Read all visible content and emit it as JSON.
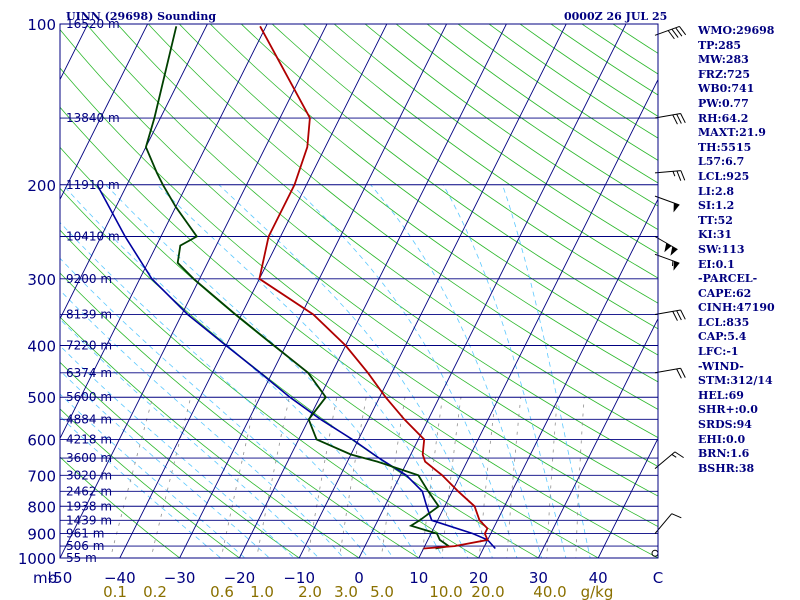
{
  "header": {
    "station": "UINN (29698) Sounding",
    "time": "0000Z 26 JUL 25"
  },
  "indices": [
    "WMO:29698",
    "TP:285",
    "MW:283",
    "FRZ:725",
    "WB0:741",
    "PW:0.77",
    "RH:64.2",
    "MAXT:21.9",
    "TH:5515",
    "L57:6.7",
    "LCL:925",
    "LI:2.8",
    "SI:1.2",
    "TT:52",
    "KI:31",
    "SW:113",
    "EI:0.1",
    "-PARCEL-",
    "CAPE:62",
    "CINH:47190",
    "LCL:835",
    "CAP:5.4",
    "LFC:-1",
    "-WIND-",
    "STM:312/14",
    "HEL:69",
    "SHR+:0.0",
    "SRDS:94",
    "EHI:0.0",
    "BRN:1.6",
    "BSHR:38"
  ],
  "colors": {
    "isobar": "#000080",
    "isotherm": "#000080",
    "dry_adiabat": "#2db82d",
    "moist_adiabat": "#5bc8ff",
    "mixing_ratio": "#909090",
    "temperature": "#b00000",
    "dewpoint": "#004000",
    "parcel": "#0000a0",
    "axis_text": "#000080",
    "mixing_text": "#8a7000"
  },
  "chart_data": {
    "type": "line",
    "title": "UINN (29698) Sounding",
    "xlabel": "",
    "ylabel": "mb",
    "xlim": [
      -50,
      50
    ],
    "ylim": [
      1000,
      100
    ],
    "log_y": true,
    "grid": true,
    "pressure_ticks": [
      100,
      200,
      300,
      400,
      500,
      600,
      700,
      800,
      900,
      1000
    ],
    "temperature_ticks": [
      -50,
      -40,
      -30,
      -20,
      -10,
      0,
      10,
      20,
      30,
      40,
      50
    ],
    "temperature_tick_labels": [
      "-50",
      "−40",
      "−30",
      "−20",
      "−10",
      "0",
      "10",
      "20",
      "30",
      "40",
      "C"
    ],
    "axis_unit_left": "mb",
    "mixing_ratio_labels": [
      "0.1",
      "0.2",
      "0.6",
      "1.0",
      "2.0",
      "3.0",
      "5.0",
      "10.0",
      "20.0",
      "40.0",
      "g/kg"
    ],
    "height_labels": [
      {
        "p": 100,
        "label": "16520 m"
      },
      {
        "p": 150,
        "label": "13840 m"
      },
      {
        "p": 200,
        "label": "11910 m"
      },
      {
        "p": 250,
        "label": "10410 m"
      },
      {
        "p": 300,
        "label": "9200 m"
      },
      {
        "p": 350,
        "label": "8139 m"
      },
      {
        "p": 400,
        "label": "7220 m"
      },
      {
        "p": 450,
        "label": "6374 m"
      },
      {
        "p": 500,
        "label": "5600 m"
      },
      {
        "p": 550,
        "label": "4884 m"
      },
      {
        "p": 600,
        "label": "4218 m"
      },
      {
        "p": 650,
        "label": "3600 m"
      },
      {
        "p": 700,
        "label": "3020 m"
      },
      {
        "p": 750,
        "label": "2462 m"
      },
      {
        "p": 800,
        "label": "1938 m"
      },
      {
        "p": 850,
        "label": "1439 m"
      },
      {
        "p": 900,
        "label": "961 m"
      },
      {
        "p": 950,
        "label": "506 m"
      },
      {
        "p": 1000,
        "label": "55 m"
      }
    ],
    "series": [
      {
        "role": "temperature",
        "points": [
          [
            101,
            -61
          ],
          [
            150,
            -45
          ],
          [
            170,
            -43
          ],
          [
            200,
            -42
          ],
          [
            250,
            -42
          ],
          [
            300,
            -40
          ],
          [
            350,
            -28
          ],
          [
            400,
            -20
          ],
          [
            450,
            -14
          ],
          [
            500,
            -9
          ],
          [
            550,
            -4
          ],
          [
            600,
            1
          ],
          [
            640,
            2
          ],
          [
            660,
            3
          ],
          [
            700,
            7
          ],
          [
            750,
            11
          ],
          [
            800,
            15
          ],
          [
            850,
            17
          ],
          [
            880,
            19
          ],
          [
            900,
            19
          ],
          [
            925,
            20
          ],
          [
            950,
            15
          ],
          [
            960,
            10
          ]
        ]
      },
      {
        "role": "dewpoint",
        "points": [
          [
            101,
            -75
          ],
          [
            150,
            -71
          ],
          [
            170,
            -70
          ],
          [
            190,
            -66
          ],
          [
            200,
            -64
          ],
          [
            220,
            -60
          ],
          [
            250,
            -54
          ],
          [
            260,
            -56
          ],
          [
            280,
            -55
          ],
          [
            300,
            -51
          ],
          [
            350,
            -41
          ],
          [
            400,
            -32
          ],
          [
            450,
            -24
          ],
          [
            500,
            -19
          ],
          [
            550,
            -20
          ],
          [
            600,
            -17
          ],
          [
            640,
            -10
          ],
          [
            660,
            -5
          ],
          [
            700,
            3
          ],
          [
            750,
            6
          ],
          [
            800,
            9
          ],
          [
            850,
            7
          ],
          [
            870,
            6
          ],
          [
            900,
            11
          ],
          [
            925,
            12
          ],
          [
            950,
            14
          ],
          [
            960,
            12
          ]
        ]
      },
      {
        "role": "parcel",
        "points": [
          [
            200,
            -75
          ],
          [
            250,
            -66
          ],
          [
            300,
            -58
          ],
          [
            350,
            -49
          ],
          [
            400,
            -40
          ],
          [
            450,
            -32
          ],
          [
            500,
            -25
          ],
          [
            550,
            -18
          ],
          [
            600,
            -11
          ],
          [
            650,
            -5
          ],
          [
            700,
            1
          ],
          [
            750,
            5
          ],
          [
            800,
            7
          ],
          [
            850,
            9
          ],
          [
            900,
            17
          ],
          [
            925,
            20
          ],
          [
            960,
            22
          ]
        ]
      }
    ],
    "wind_barbs": [
      {
        "p": 105,
        "speed": 40,
        "dir": 250
      },
      {
        "p": 150,
        "speed": 30,
        "dir": 260
      },
      {
        "p": 190,
        "speed": 25,
        "dir": 265
      },
      {
        "p": 210,
        "speed": 50,
        "dir": 290
      },
      {
        "p": 250,
        "speed": 100,
        "dir": 300
      },
      {
        "p": 270,
        "speed": 55,
        "dir": 290
      },
      {
        "p": 350,
        "speed": 30,
        "dir": 260
      },
      {
        "p": 450,
        "speed": 20,
        "dir": 260
      },
      {
        "p": 680,
        "speed": 15,
        "dir": 230
      },
      {
        "p": 900,
        "speed": 10,
        "dir": 220
      },
      {
        "p": 980,
        "speed": 0,
        "dir": 0
      }
    ]
  }
}
